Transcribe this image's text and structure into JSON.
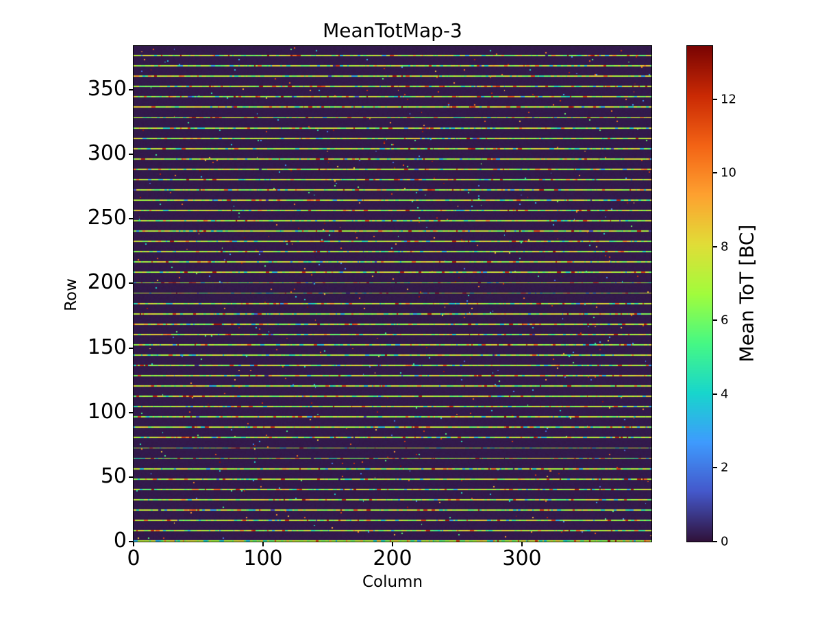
{
  "figure": {
    "background_color": "#ffffff",
    "text_color": "#000000"
  },
  "chart_data": {
    "type": "heatmap",
    "title": "MeanTotMap-3",
    "xlabel": "Column",
    "ylabel": "Row",
    "colorbar_label": "Mean ToT [BC]",
    "cols": 400,
    "rows": 384,
    "xlim": [
      0,
      400
    ],
    "ylim": [
      0,
      384
    ],
    "x_ticks": [
      0,
      100,
      200,
      300
    ],
    "y_ticks": [
      0,
      50,
      100,
      150,
      200,
      250,
      300,
      350
    ],
    "colorbar_ticks": [
      0,
      2,
      4,
      6,
      8,
      10,
      12
    ],
    "vmin": 0,
    "vmax": 13.45,
    "colormap": "turbo",
    "colormap_stops": [
      [
        0.0,
        "#30123b"
      ],
      [
        0.1,
        "#4458cb"
      ],
      [
        0.2,
        "#3e9bfe"
      ],
      [
        0.3,
        "#18d6cc"
      ],
      [
        0.4,
        "#46f884"
      ],
      [
        0.5,
        "#a2fc3c"
      ],
      [
        0.6,
        "#e1dd37"
      ],
      [
        0.7,
        "#fea130"
      ],
      [
        0.8,
        "#f36315"
      ],
      [
        0.9,
        "#ca2a04"
      ],
      [
        1.0,
        "#7a0403"
      ]
    ],
    "pattern": {
      "description": "dark ~0 BC background with one bright speckled row every 8 rows (rows 0,8,16,...,376, mean ToT ~4-12 BC) plus sparse isolated hot/cold pixels",
      "background_value": 0.15,
      "stripe_period": 8,
      "stripe_offset": 0,
      "stripe_base_range": [
        5.6,
        8.6
      ],
      "stripe_hot_fraction": 0.1,
      "stripe_hot_range": [
        9.2,
        12.8
      ],
      "stripe_cold_fraction": 0.1,
      "stripe_cold_range": [
        3.0,
        5.2
      ],
      "stripe_dark_fraction": 0.005,
      "stripe_dark_range": [
        0.5,
        2.0
      ],
      "speck_fraction": 0.004,
      "speck_hot_range": [
        8.5,
        13.4
      ],
      "speck_cold_range": [
        1.5,
        6.0
      ],
      "seed": 1337
    }
  }
}
